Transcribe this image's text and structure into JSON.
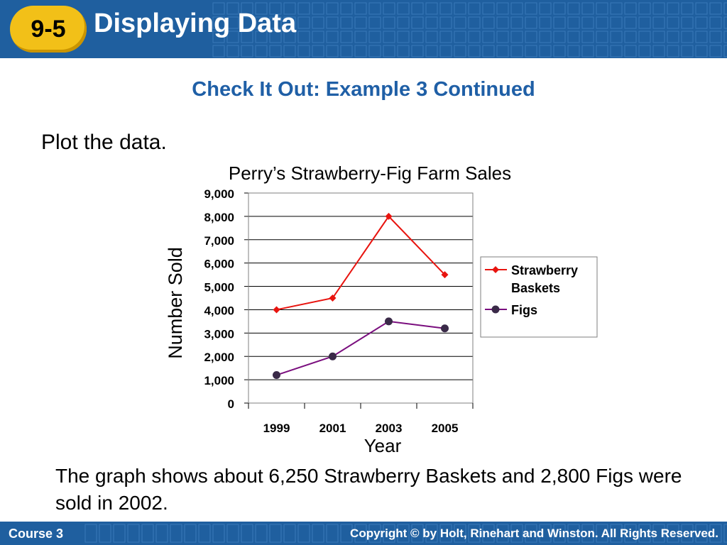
{
  "header": {
    "badge": "9-5",
    "title": "Displaying Data"
  },
  "subtitle": "Check It Out: Example 3 Continued",
  "prompt": "Plot the data.",
  "caption": "The graph shows about 6,250 Strawberry Baskets and 2,800 Figs were sold in 2002.",
  "footer": {
    "left": "Course 3",
    "right": "Copyright © by Holt, Rinehart and Winston. All Rights Reserved."
  },
  "colors": {
    "header_bg": "#1f5f9f",
    "badge": "#f2c018",
    "subtitle": "#1f5fa6"
  },
  "chart_data": {
    "type": "line",
    "title": "Perry’s Strawberry-Fig Farm Sales",
    "xlabel": "Year",
    "ylabel": "Number Sold",
    "categories": [
      "1999",
      "2001",
      "2003",
      "2005"
    ],
    "ylim": [
      0,
      9000
    ],
    "yticks": [
      0,
      1000,
      2000,
      3000,
      4000,
      5000,
      6000,
      7000,
      8000,
      9000
    ],
    "ytick_labels": [
      "0",
      "1,000",
      "2,000",
      "3,000",
      "4,000",
      "5,000",
      "6,000",
      "7,000",
      "8,000",
      "9,000"
    ],
    "grid": true,
    "legend_position": "right",
    "series": [
      {
        "name": "Strawberry Baskets",
        "name_lines": [
          "Strawberry",
          "Baskets"
        ],
        "values": [
          4000,
          4500,
          8000,
          5500
        ],
        "color": "#e8140f",
        "marker": "diamond"
      },
      {
        "name": "Figs",
        "name_lines": [
          "Figs"
        ],
        "values": [
          1200,
          2000,
          3500,
          3200
        ],
        "color": "#7a0e7e",
        "marker": "circle"
      }
    ]
  }
}
